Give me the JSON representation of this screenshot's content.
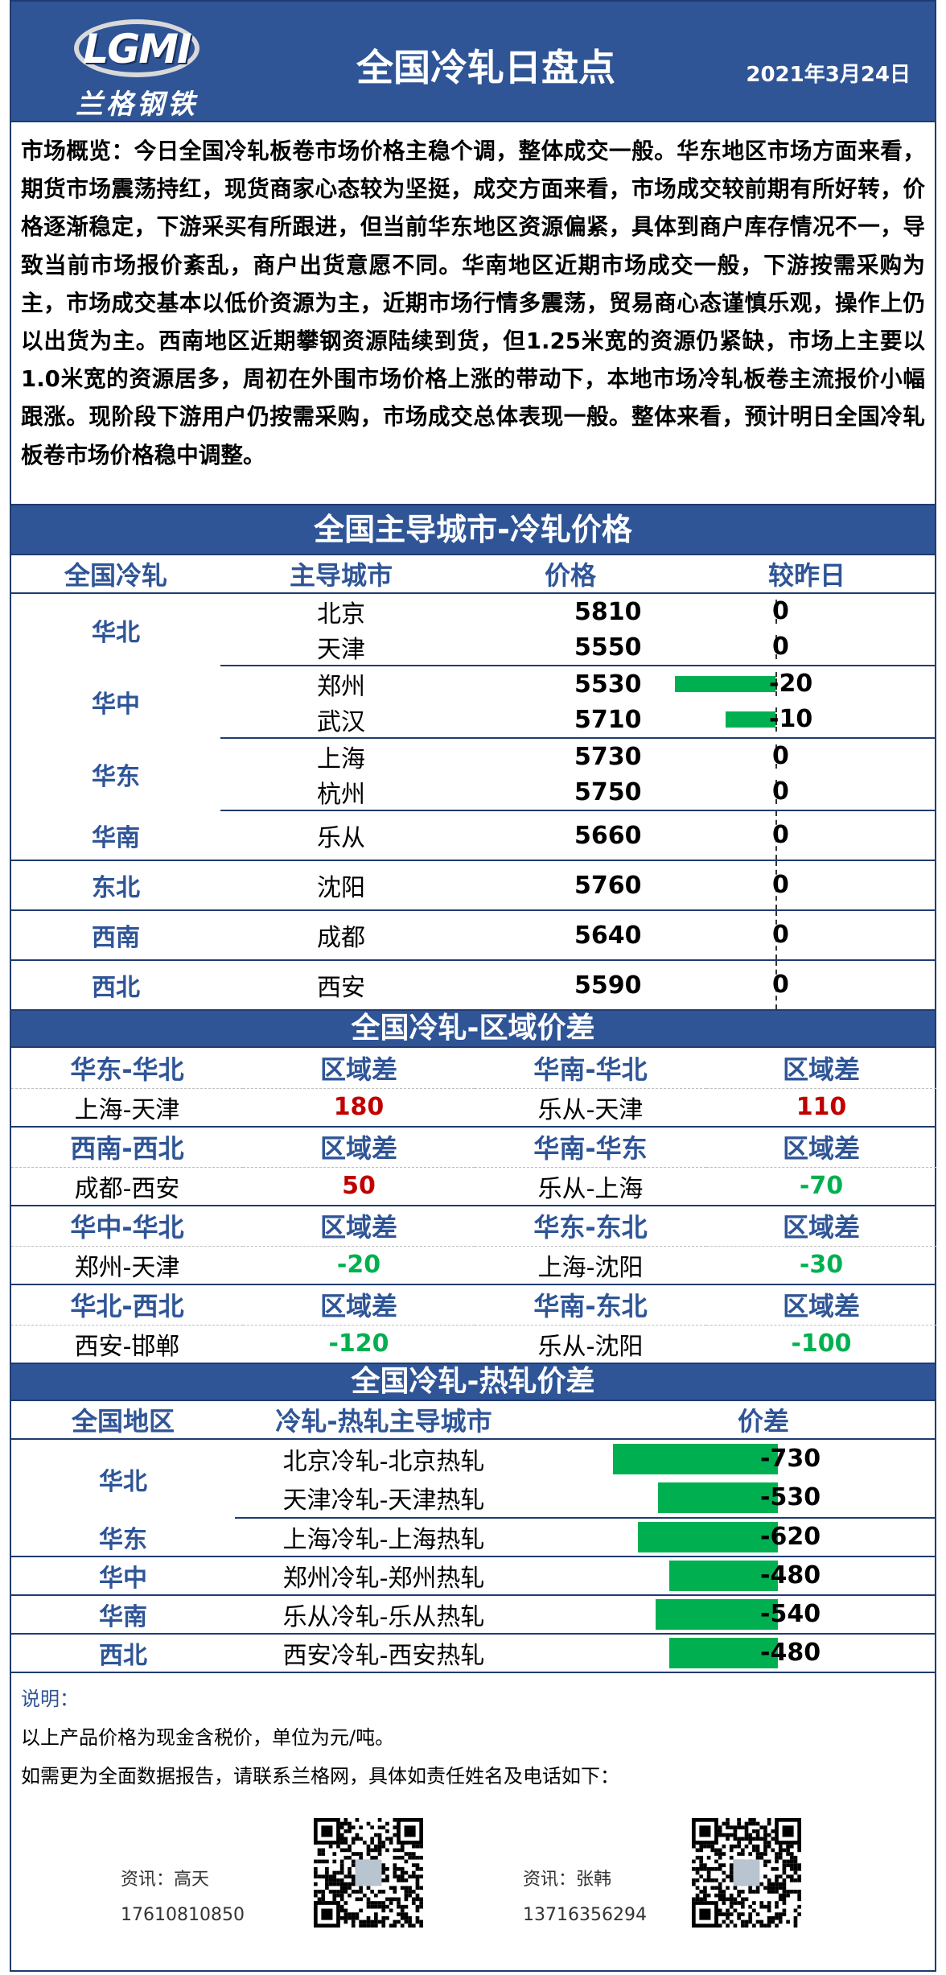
{
  "header": {
    "logo_text": "LGMI",
    "logo_cn": "兰格钢铁",
    "title": "全国冷轧日盘点",
    "date": "2021年3月24日"
  },
  "overview": "市场概览：今日全国冷轧板卷市场价格主稳个调，整体成交一般。华东地区市场方面来看，期货市场震荡持红，现货商家心态较为坚挺，成交方面来看，市场成交较前期有所好转，价格逐渐稳定，下游采买有所跟进，但当前华东地区资源偏紧，具体到商户库存情况不一，导致当前市场报价紊乱，商户出货意愿不同。华南地区近期市场成交一般，下游按需采购为主，市场成交基本以低价资源为主，近期市场行情多震荡，贸易商心态谨慎乐观，操作上仍以出货为主。西南地区近期攀钢资源陆续到货，但1.25米宽的资源仍紧缺，市场上主要以1.0米宽的资源居多，周初在外围市场价格上涨的带动下，本地市场冷轧板卷主流报价小幅跟涨。现阶段下游用户仍按需采购，市场成交总体表现一般。整体来看，预计明日全国冷轧板卷市场价格稳中调整。",
  "section1": {
    "title": "全国主导城市-冷轧价格",
    "headers": [
      "全国冷轧",
      "主导城市",
      "价格",
      "较昨日"
    ],
    "groups": [
      {
        "region": "华北",
        "rows": [
          {
            "city": "北京",
            "price": "5810",
            "change": 0,
            "change_label": "0"
          },
          {
            "city": "天津",
            "price": "5550",
            "change": 0,
            "change_label": "0"
          }
        ]
      },
      {
        "region": "华中",
        "rows": [
          {
            "city": "郑州",
            "price": "5530",
            "change": -20,
            "change_label": "-20"
          },
          {
            "city": "武汉",
            "price": "5710",
            "change": -10,
            "change_label": "-10"
          }
        ]
      },
      {
        "region": "华东",
        "rows": [
          {
            "city": "上海",
            "price": "5730",
            "change": 0,
            "change_label": "0"
          },
          {
            "city": "杭州",
            "price": "5750",
            "change": 0,
            "change_label": "0"
          }
        ]
      },
      {
        "region": "华南",
        "rows": [
          {
            "city": "乐从",
            "price": "5660",
            "change": 0,
            "change_label": "0"
          }
        ]
      },
      {
        "region": "东北",
        "rows": [
          {
            "city": "沈阳",
            "price": "5760",
            "change": 0,
            "change_label": "0"
          }
        ]
      },
      {
        "region": "西南",
        "rows": [
          {
            "city": "成都",
            "price": "5640",
            "change": 0,
            "change_label": "0"
          }
        ]
      },
      {
        "region": "西北",
        "rows": [
          {
            "city": "西安",
            "price": "5590",
            "change": 0,
            "change_label": "0"
          }
        ]
      }
    ]
  },
  "section2": {
    "title": "全国冷轧-区域价差",
    "blocks": [
      {
        "left_head": "华东-华北",
        "left_diff_head": "区域差",
        "right_head": "华南-华北",
        "right_diff_head": "区域差",
        "left_pair": "上海-天津",
        "left_val": "180",
        "left_sign": "pos",
        "right_pair": "乐从-天津",
        "right_val": "110",
        "right_sign": "pos"
      },
      {
        "left_head": "西南-西北",
        "left_diff_head": "区域差",
        "right_head": "华南-华东",
        "right_diff_head": "区域差",
        "left_pair": "成都-西安",
        "left_val": "50",
        "left_sign": "pos",
        "right_pair": "乐从-上海",
        "right_val": "-70",
        "right_sign": "neg"
      },
      {
        "left_head": "华中-华北",
        "left_diff_head": "区域差",
        "right_head": "华东-东北",
        "right_diff_head": "区域差",
        "left_pair": "郑州-天津",
        "left_val": "-20",
        "left_sign": "neg",
        "right_pair": "上海-沈阳",
        "right_val": "-30",
        "right_sign": "neg"
      },
      {
        "left_head": "华北-西北",
        "left_diff_head": "区域差",
        "right_head": "华南-东北",
        "right_diff_head": "区域差",
        "left_pair": "西安-邯郸",
        "left_val": "-120",
        "left_sign": "neg",
        "right_pair": "乐从-沈阳",
        "right_val": "-100",
        "right_sign": "neg"
      }
    ]
  },
  "section3": {
    "title": "全国冷轧-热轧价差",
    "headers": [
      "全国地区",
      "冷轧-热轧主导城市",
      "价差"
    ],
    "groups": [
      {
        "region": "华北",
        "rows": [
          {
            "pair": "北京冷轧-北京热轧",
            "value": -730,
            "label": "-730"
          },
          {
            "pair": "天津冷轧-天津热轧",
            "value": -530,
            "label": "-530"
          }
        ]
      },
      {
        "region": "华东",
        "rows": [
          {
            "pair": "上海冷轧-上海热轧",
            "value": -620,
            "label": "-620"
          }
        ]
      },
      {
        "region": "华中",
        "rows": [
          {
            "pair": "郑州冷轧-郑州热轧",
            "value": -480,
            "label": "-480"
          }
        ]
      },
      {
        "region": "华南",
        "rows": [
          {
            "pair": "乐从冷轧-乐从热轧",
            "value": -540,
            "label": "-540"
          }
        ]
      },
      {
        "region": "西北",
        "rows": [
          {
            "pair": "西安冷轧-西安热轧",
            "value": -480,
            "label": "-480"
          }
        ]
      }
    ]
  },
  "notes": {
    "label": "说明：",
    "line1": "以上产品价格为现金含税价，单位为元/吨。",
    "line2": "如需更为全面数据报告，请联系兰格网，具体如责任姓名及电话如下："
  },
  "contacts": [
    {
      "name": "资讯：高天",
      "phone": "17610810850"
    },
    {
      "name": "资讯：张韩",
      "phone": "13716356294"
    }
  ],
  "colors": {
    "header_blue": "#2f5597",
    "bar_green": "#00b050",
    "pos_red": "#c00000"
  }
}
